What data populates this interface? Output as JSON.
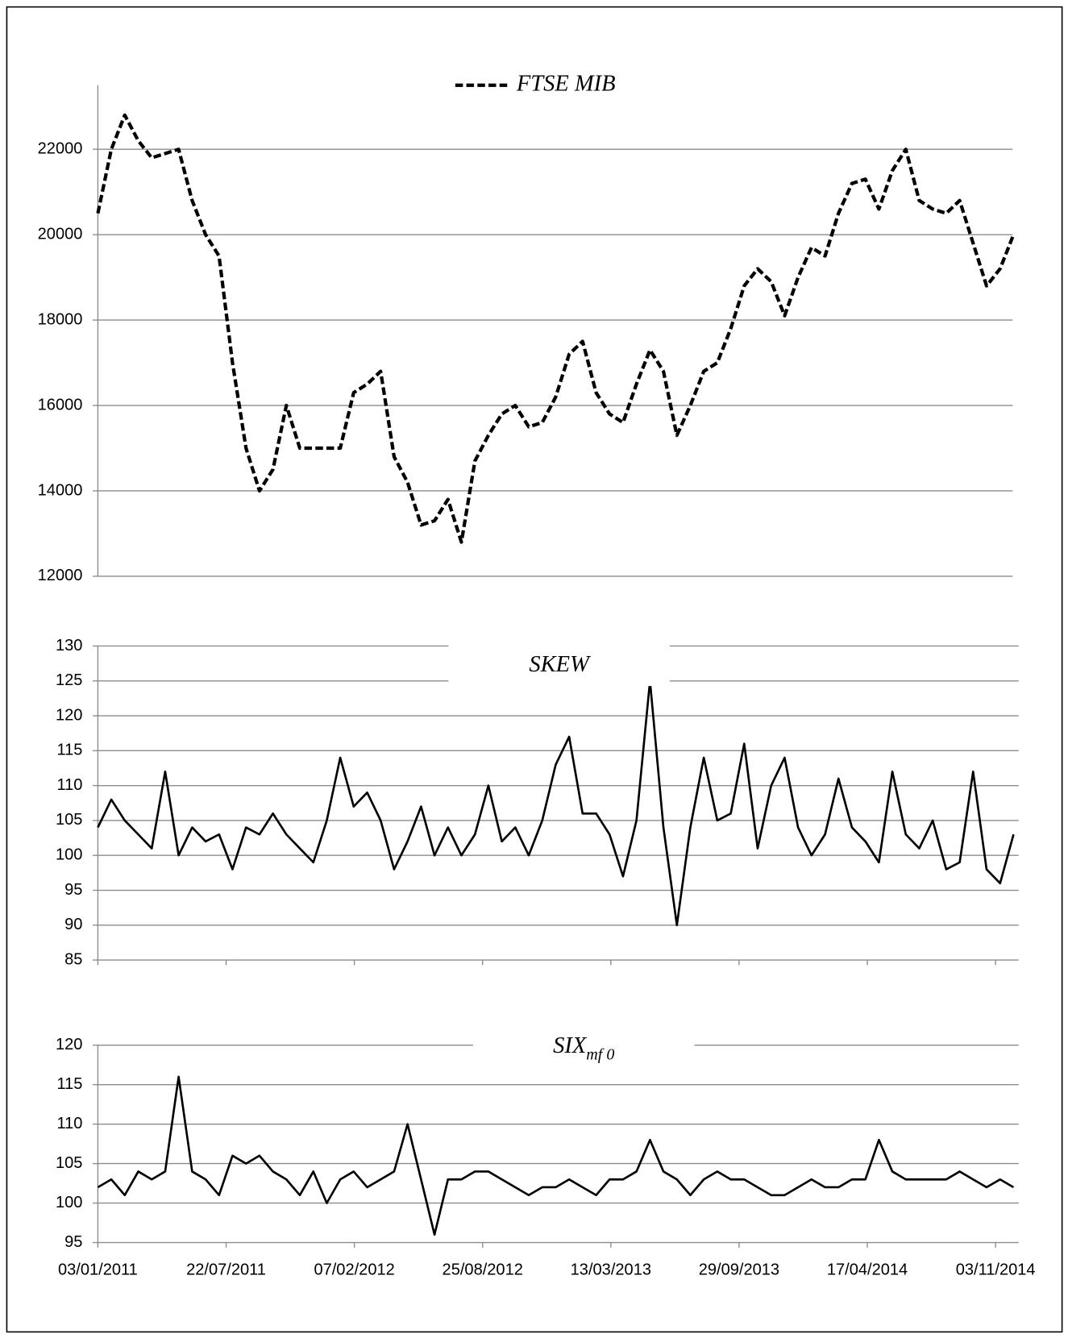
{
  "chart_data": [
    {
      "type": "line",
      "x": [
        "03/01/2011",
        "24/01/2011",
        "14/02/2011",
        "07/03/2011",
        "28/03/2011",
        "18/04/2011",
        "09/05/2011",
        "30/05/2011",
        "20/06/2011",
        "11/07/2011",
        "01/08/2011",
        "22/08/2011",
        "12/09/2011",
        "03/10/2011",
        "24/10/2011",
        "14/11/2011",
        "05/12/2011",
        "26/12/2011",
        "16/01/2012",
        "06/02/2012",
        "27/02/2012",
        "19/03/2012",
        "09/04/2012",
        "30/04/2012",
        "21/05/2012",
        "11/06/2012",
        "02/07/2012",
        "23/07/2012",
        "13/08/2012",
        "03/09/2012",
        "24/09/2012",
        "15/10/2012",
        "05/11/2012",
        "26/11/2012",
        "17/12/2012",
        "07/01/2013",
        "28/01/2013",
        "18/02/2013",
        "11/03/2013",
        "01/04/2013",
        "22/04/2013",
        "13/05/2013",
        "03/06/2013",
        "24/06/2013",
        "15/07/2013",
        "05/08/2013",
        "26/08/2013",
        "16/09/2013",
        "07/10/2013",
        "28/10/2013",
        "18/11/2013",
        "09/12/2013",
        "30/12/2013",
        "20/01/2014",
        "10/02/2014",
        "03/03/2014",
        "24/03/2014",
        "14/04/2014",
        "05/05/2014",
        "26/05/2014",
        "16/06/2014",
        "07/07/2014",
        "28/07/2014",
        "18/08/2014",
        "08/09/2014",
        "29/09/2014",
        "20/10/2014",
        "10/11/2014",
        "01/12/2014"
      ],
      "series": [
        {
          "name": "FTSE MIB",
          "color": "#000000",
          "dashed": true,
          "values": [
            20500,
            22000,
            22800,
            22200,
            21800,
            21900,
            22000,
            20800,
            20000,
            19500,
            17000,
            15000,
            14000,
            14500,
            16000,
            15000,
            15000,
            15000,
            15000,
            16300,
            16500,
            16800,
            14800,
            14200,
            13200,
            13300,
            13800,
            12800,
            14700,
            15300,
            15800,
            16000,
            15500,
            15600,
            16200,
            17200,
            17500,
            16300,
            15800,
            15600,
            16500,
            17300,
            16800,
            15300,
            16000,
            16800,
            17000,
            17800,
            18800,
            19200,
            18900,
            18100,
            19000,
            19700,
            19500,
            20500,
            21200,
            21300,
            20600,
            21500,
            22000,
            20800,
            20600,
            20500,
            20800,
            19800,
            18800,
            19200,
            20000
          ]
        }
      ],
      "xlim": [
        "03/01/2011",
        "05/12/2014"
      ],
      "ylim": [
        12000,
        23500
      ],
      "yticks": [
        12000,
        14000,
        16000,
        18000,
        20000,
        22000
      ],
      "grid": true
    },
    {
      "type": "line",
      "x": [
        "03/01/2011",
        "24/01/2011",
        "14/02/2011",
        "07/03/2011",
        "28/03/2011",
        "18/04/2011",
        "09/05/2011",
        "30/05/2011",
        "20/06/2011",
        "11/07/2011",
        "01/08/2011",
        "22/08/2011",
        "12/09/2011",
        "03/10/2011",
        "24/10/2011",
        "14/11/2011",
        "05/12/2011",
        "26/12/2011",
        "16/01/2012",
        "06/02/2012",
        "27/02/2012",
        "19/03/2012",
        "09/04/2012",
        "30/04/2012",
        "21/05/2012",
        "11/06/2012",
        "02/07/2012",
        "23/07/2012",
        "13/08/2012",
        "03/09/2012",
        "24/09/2012",
        "15/10/2012",
        "05/11/2012",
        "26/11/2012",
        "17/12/2012",
        "07/01/2013",
        "28/01/2013",
        "18/02/2013",
        "11/03/2013",
        "01/04/2013",
        "22/04/2013",
        "13/05/2013",
        "03/06/2013",
        "24/06/2013",
        "15/07/2013",
        "05/08/2013",
        "26/08/2013",
        "16/09/2013",
        "07/10/2013",
        "28/10/2013",
        "18/11/2013",
        "09/12/2013",
        "30/12/2013",
        "20/01/2014",
        "10/02/2014",
        "03/03/2014",
        "24/03/2014",
        "14/04/2014",
        "05/05/2014",
        "26/05/2014",
        "16/06/2014",
        "07/07/2014",
        "28/07/2014",
        "18/08/2014",
        "08/09/2014",
        "29/09/2014",
        "20/10/2014",
        "10/11/2014",
        "01/12/2014"
      ],
      "series": [
        {
          "name": "SKEW",
          "color": "#000000",
          "values": [
            104,
            108,
            105,
            103,
            101,
            112,
            100,
            104,
            102,
            103,
            98,
            104,
            103,
            106,
            103,
            101,
            99,
            105,
            114,
            107,
            109,
            105,
            98,
            102,
            107,
            100,
            104,
            100,
            103,
            110,
            102,
            104,
            100,
            105,
            113,
            117,
            106,
            106,
            103,
            97,
            105,
            125,
            104,
            90,
            104,
            114,
            105,
            106,
            116,
            101,
            110,
            114,
            104,
            100,
            103,
            111,
            104,
            102,
            99,
            112,
            103,
            101,
            105,
            98,
            99,
            112,
            98,
            96,
            103
          ]
        }
      ],
      "xlim": [
        "03/01/2011",
        "05/12/2014"
      ],
      "xticks": [
        "03/01/2011",
        "22/07/2011",
        "07/02/2012",
        "25/08/2012",
        "13/03/2013",
        "29/09/2013",
        "17/04/2014",
        "03/11/2014"
      ],
      "ylim": [
        85,
        130
      ],
      "yticks": [
        85,
        90,
        95,
        100,
        105,
        110,
        115,
        120,
        125,
        130
      ],
      "grid": true
    },
    {
      "type": "line",
      "x": [
        "03/01/2011",
        "24/01/2011",
        "14/02/2011",
        "07/03/2011",
        "28/03/2011",
        "18/04/2011",
        "09/05/2011",
        "30/05/2011",
        "20/06/2011",
        "11/07/2011",
        "01/08/2011",
        "22/08/2011",
        "12/09/2011",
        "03/10/2011",
        "24/10/2011",
        "14/11/2011",
        "05/12/2011",
        "26/12/2011",
        "16/01/2012",
        "06/02/2012",
        "27/02/2012",
        "19/03/2012",
        "09/04/2012",
        "30/04/2012",
        "21/05/2012",
        "11/06/2012",
        "02/07/2012",
        "23/07/2012",
        "13/08/2012",
        "03/09/2012",
        "24/09/2012",
        "15/10/2012",
        "05/11/2012",
        "26/11/2012",
        "17/12/2012",
        "07/01/2013",
        "28/01/2013",
        "18/02/2013",
        "11/03/2013",
        "01/04/2013",
        "22/04/2013",
        "13/05/2013",
        "03/06/2013",
        "24/06/2013",
        "15/07/2013",
        "05/08/2013",
        "26/08/2013",
        "16/09/2013",
        "07/10/2013",
        "28/10/2013",
        "18/11/2013",
        "09/12/2013",
        "30/12/2013",
        "20/01/2014",
        "10/02/2014",
        "03/03/2014",
        "24/03/2014",
        "14/04/2014",
        "05/05/2014",
        "26/05/2014",
        "16/06/2014",
        "07/07/2014",
        "28/07/2014",
        "18/08/2014",
        "08/09/2014",
        "29/09/2014",
        "20/10/2014",
        "10/11/2014",
        "01/12/2014"
      ],
      "series": [
        {
          "name": "SIX",
          "name_subscript": "mf 0",
          "color": "#000000",
          "values": [
            102,
            103,
            101,
            104,
            103,
            104,
            116,
            104,
            103,
            101,
            106,
            105,
            106,
            104,
            103,
            101,
            104,
            100,
            103,
            104,
            102,
            103,
            104,
            110,
            103,
            96,
            103,
            103,
            104,
            104,
            103,
            102,
            101,
            102,
            102,
            103,
            102,
            101,
            103,
            103,
            104,
            108,
            104,
            103,
            101,
            103,
            104,
            103,
            103,
            102,
            101,
            101,
            102,
            103,
            102,
            102,
            103,
            103,
            108,
            104,
            103,
            103,
            103,
            103,
            104,
            103,
            102,
            103,
            102
          ]
        }
      ],
      "xlim": [
        "03/01/2011",
        "05/12/2014"
      ],
      "xticks": [
        "03/01/2011",
        "22/07/2011",
        "07/02/2012",
        "25/08/2012",
        "13/03/2013",
        "29/09/2013",
        "17/04/2014",
        "03/11/2014"
      ],
      "ylim": [
        95,
        120
      ],
      "yticks": [
        95,
        100,
        105,
        110,
        115,
        120
      ],
      "grid": true,
      "xtick_labels": true
    }
  ]
}
